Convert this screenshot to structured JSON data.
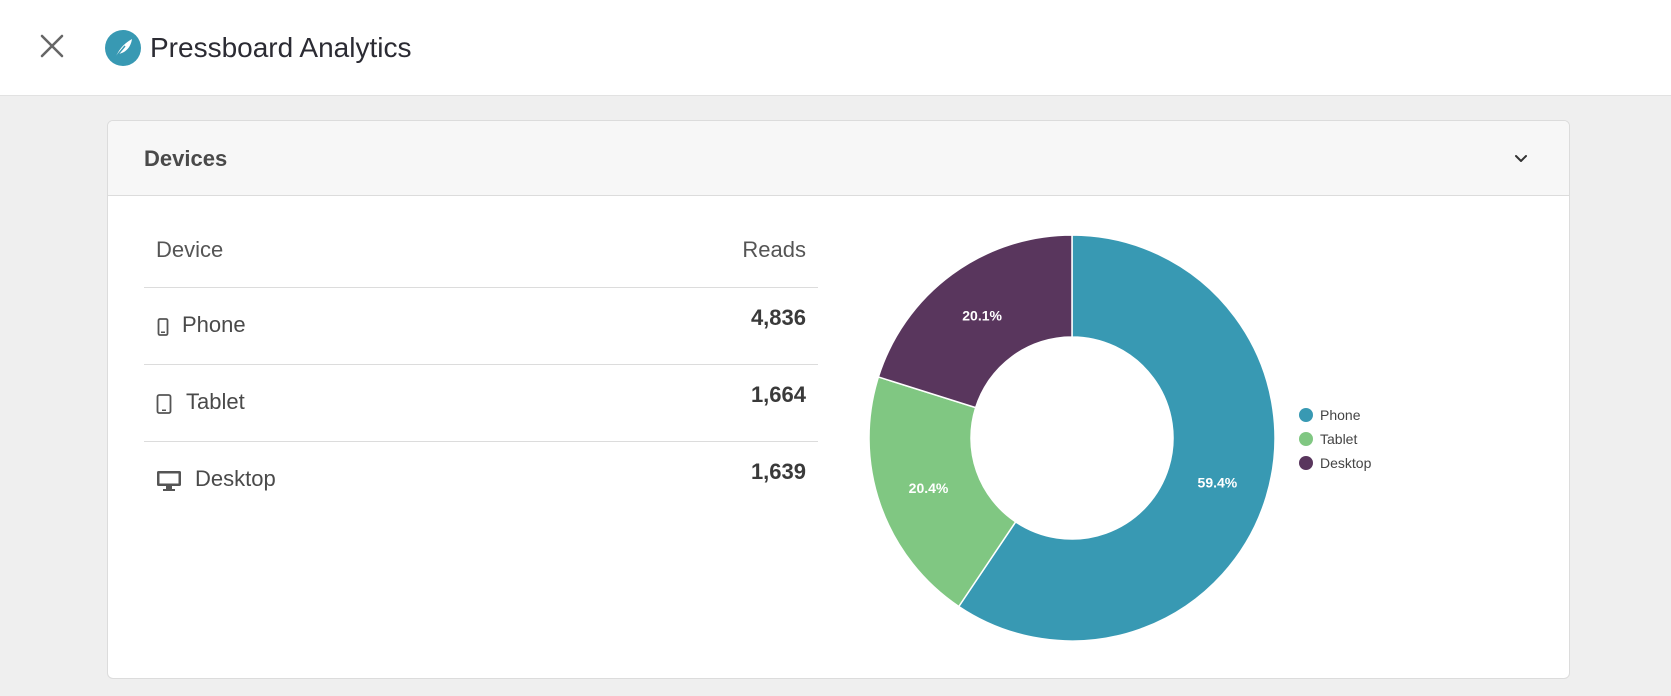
{
  "header": {
    "title": "Pressboard Analytics",
    "close_icon": "close-icon",
    "logo_icon": "feather-logo-icon",
    "logo_color": "#3899b3"
  },
  "card": {
    "title": "Devices",
    "toggle_icon": "chevron-down-icon"
  },
  "table": {
    "columns": [
      "Device",
      "Reads"
    ],
    "rows": [
      {
        "icon": "phone-icon",
        "label": "Phone",
        "value": "4,836"
      },
      {
        "icon": "tablet-icon",
        "label": "Tablet",
        "value": "1,664"
      },
      {
        "icon": "desktop-icon",
        "label": "Desktop",
        "value": "1,639"
      }
    ]
  },
  "chart_data": {
    "type": "pie",
    "donut": true,
    "categories": [
      "Phone",
      "Tablet",
      "Desktop"
    ],
    "values": [
      4836,
      1664,
      1639
    ],
    "percent_labels": [
      "59.4%",
      "20.4%",
      "20.1%"
    ],
    "colors": [
      "#3899b3",
      "#80c782",
      "#59365d"
    ],
    "legend": "right"
  }
}
